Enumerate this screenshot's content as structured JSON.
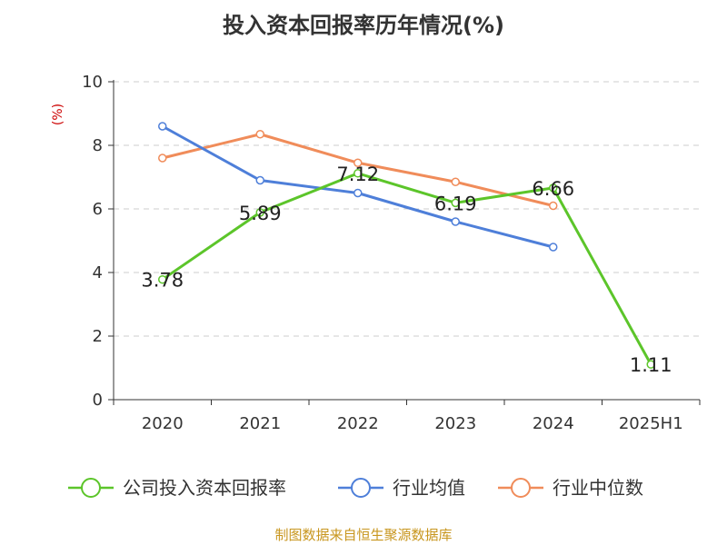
{
  "chart_data": {
    "type": "line",
    "title": "投入资本回报率历年情况(%)",
    "ylabel": "(%)",
    "xlabel": "",
    "categories": [
      "2020",
      "2021",
      "2022",
      "2023",
      "2024",
      "2025H1"
    ],
    "ylim": [
      0,
      10
    ],
    "yticks": [
      0,
      2,
      4,
      6,
      8,
      10
    ],
    "grid": true,
    "legend_position": "bottom",
    "series": [
      {
        "name": "公司投入资本回报率",
        "color": "#5cc52a",
        "values": [
          3.78,
          5.89,
          7.12,
          6.19,
          6.66,
          1.11
        ],
        "labels": [
          "3.78",
          "5.89",
          "7.12",
          "6.19",
          "6.66",
          "1.11"
        ]
      },
      {
        "name": "行业均值",
        "color": "#4e7fd9",
        "values": [
          8.6,
          6.9,
          6.5,
          5.6,
          4.8,
          null
        ]
      },
      {
        "name": "行业中位数",
        "color": "#f08c5a",
        "values": [
          7.6,
          8.35,
          7.45,
          6.85,
          6.1,
          null
        ]
      }
    ]
  },
  "source": "制图数据来自恒生聚源数据库"
}
